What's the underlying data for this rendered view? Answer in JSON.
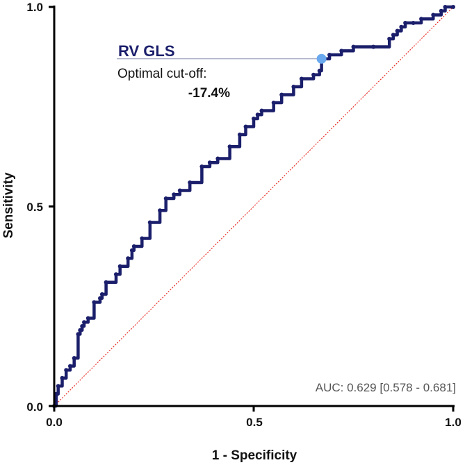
{
  "chart_data": {
    "type": "line",
    "title": "",
    "xlabel": "1 - Specificity",
    "ylabel": "Sensitivity",
    "xlim": [
      0,
      1
    ],
    "ylim": [
      0,
      1
    ],
    "x_ticks": [
      "0.0",
      "0.5",
      "1.0"
    ],
    "y_ticks": [
      "0.0",
      "0.5",
      "1.0"
    ],
    "series": [
      {
        "name": "RV GLS",
        "color": "#1b1f6b",
        "x": [
          0,
          0.005,
          0.01,
          0.02,
          0.03,
          0.04,
          0.05,
          0.06,
          0.065,
          0.07,
          0.075,
          0.085,
          0.1,
          0.115,
          0.12,
          0.13,
          0.155,
          0.165,
          0.185,
          0.195,
          0.2,
          0.22,
          0.24,
          0.265,
          0.28,
          0.3,
          0.315,
          0.34,
          0.37,
          0.39,
          0.41,
          0.44,
          0.465,
          0.48,
          0.5,
          0.51,
          0.52,
          0.55,
          0.57,
          0.6,
          0.62,
          0.65,
          0.665,
          0.67,
          0.69,
          0.72,
          0.75,
          0.8,
          0.84,
          0.85,
          0.86,
          0.87,
          0.88,
          0.9,
          0.92,
          0.95,
          0.97,
          0.98,
          1.0
        ],
        "y": [
          0,
          0.03,
          0.05,
          0.07,
          0.09,
          0.1,
          0.12,
          0.18,
          0.19,
          0.2,
          0.21,
          0.22,
          0.26,
          0.27,
          0.28,
          0.31,
          0.33,
          0.35,
          0.37,
          0.39,
          0.4,
          0.42,
          0.46,
          0.49,
          0.52,
          0.53,
          0.54,
          0.56,
          0.6,
          0.61,
          0.62,
          0.65,
          0.68,
          0.7,
          0.72,
          0.73,
          0.74,
          0.76,
          0.78,
          0.8,
          0.82,
          0.83,
          0.84,
          0.87,
          0.88,
          0.89,
          0.9,
          0.9,
          0.92,
          0.93,
          0.94,
          0.95,
          0.96,
          0.96,
          0.97,
          0.98,
          0.99,
          1.0,
          1.0
        ]
      }
    ],
    "reference_line": {
      "x": [
        0,
        1
      ],
      "y": [
        0,
        1
      ],
      "color": "#e8302a",
      "style": "dotted"
    },
    "optimal_point": {
      "x": 0.67,
      "y": 0.87,
      "color": "#6aa9ee"
    },
    "annotations": {
      "series_label": "RV GLS",
      "cutoff_label": "Optimal cut-off:",
      "cutoff_value": "-17.4%",
      "auc": "AUC: 0.629 [0.578 - 0.681]"
    }
  }
}
